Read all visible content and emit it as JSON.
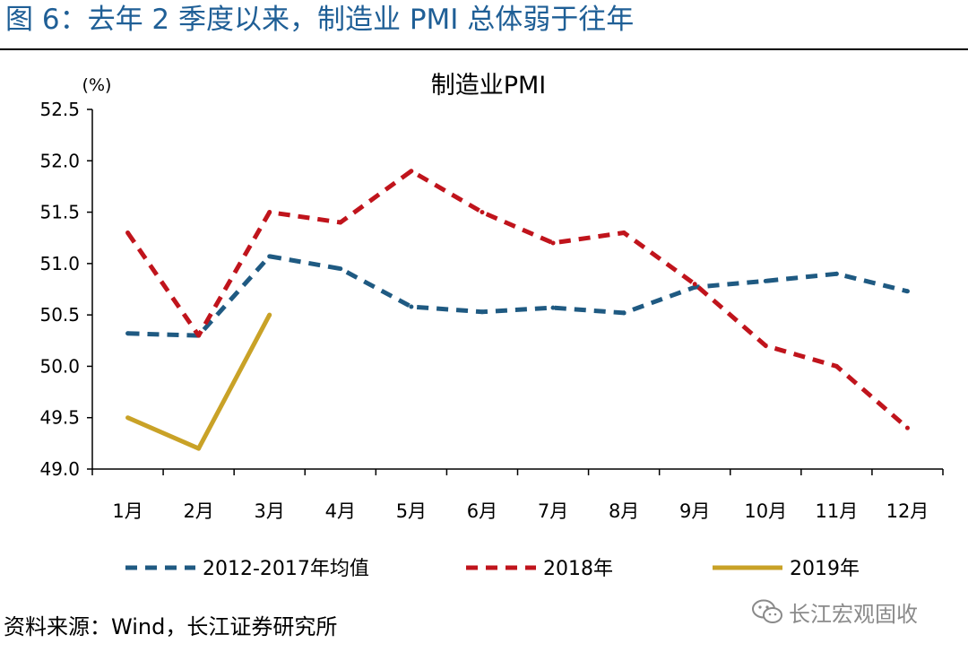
{
  "header": {
    "title": "图 6：去年 2 季度以来，制造业 PMI 总体弱于往年"
  },
  "footer": {
    "source": "资料来源：Wind，长江证券研究所",
    "watermark_text": "长江宏观固收",
    "watermark_icon": "wechat-icon"
  },
  "colors": {
    "title": "#1f5f96",
    "series_avg": "#1f5a82",
    "series_2018": "#c0141c",
    "series_2019": "#c9a227"
  },
  "chart_data": {
    "type": "line",
    "title": "制造业PMI",
    "unit_label": "(%)",
    "xlabel": "",
    "ylabel": "",
    "categories": [
      "1月",
      "2月",
      "3月",
      "4月",
      "5月",
      "6月",
      "7月",
      "8月",
      "9月",
      "10月",
      "11月",
      "12月"
    ],
    "ylim": [
      49.0,
      52.5
    ],
    "yticks": [
      "49.0",
      "49.5",
      "50.0",
      "50.5",
      "51.0",
      "51.5",
      "52.0",
      "52.5"
    ],
    "grid": false,
    "legend_position": "bottom",
    "series": [
      {
        "name": "2012-2017年均值",
        "style": "dashed",
        "color": "#1f5a82",
        "values": [
          50.32,
          50.3,
          51.07,
          50.95,
          50.58,
          50.53,
          50.57,
          50.52,
          50.77,
          50.83,
          50.9,
          50.73
        ]
      },
      {
        "name": "2018年",
        "style": "dashed",
        "color": "#c0141c",
        "values": [
          51.3,
          50.3,
          51.5,
          51.4,
          51.9,
          51.5,
          51.2,
          51.3,
          50.8,
          50.2,
          50.0,
          49.4
        ]
      },
      {
        "name": "2019年",
        "style": "solid",
        "color": "#c9a227",
        "values": [
          49.5,
          49.2,
          50.5,
          null,
          null,
          null,
          null,
          null,
          null,
          null,
          null,
          null
        ]
      }
    ]
  }
}
